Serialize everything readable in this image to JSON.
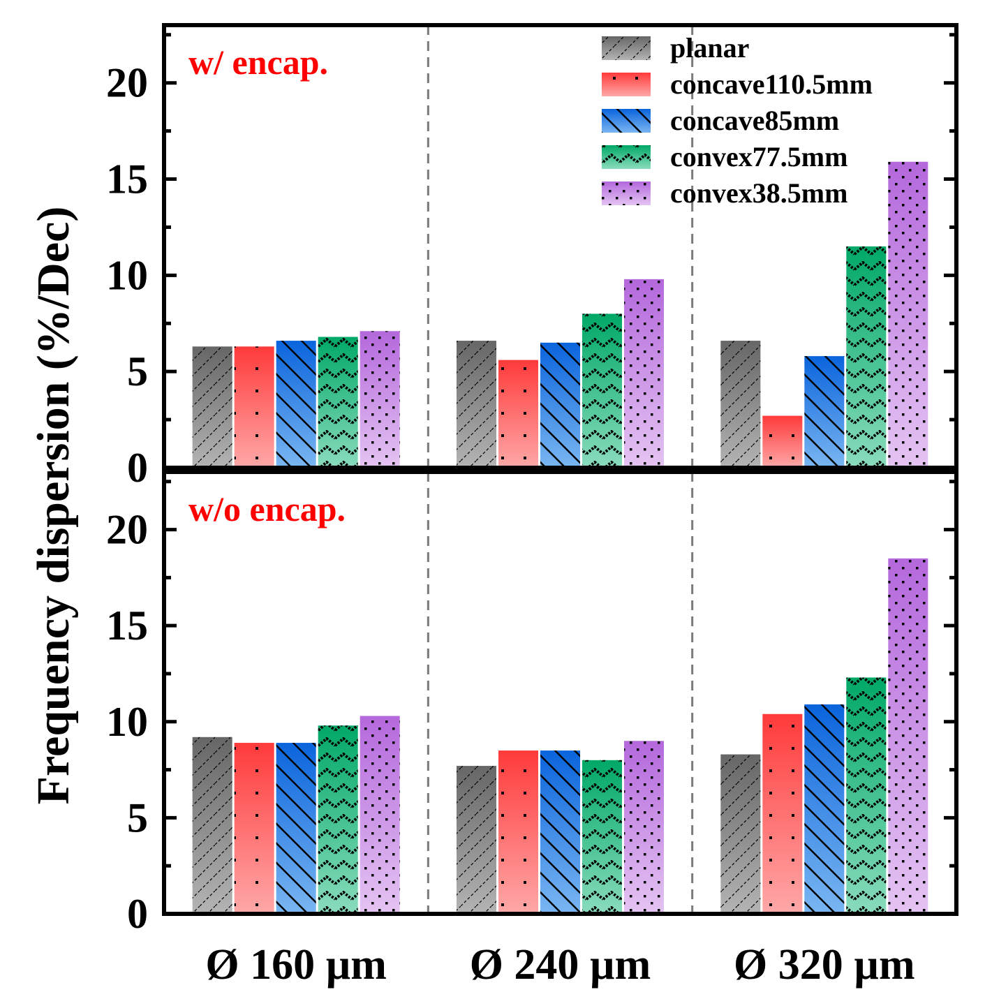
{
  "chart_data": {
    "type": "bar",
    "ylabel": "Frequency dispersion (%/Dec)",
    "ylim": [
      0,
      23
    ],
    "yticks": [
      0,
      5,
      10,
      15,
      20
    ],
    "categories": [
      "Ø 160 µm",
      "Ø 240 µm",
      "Ø 320 µm"
    ],
    "legend": {
      "position": "top-right",
      "entries": [
        "planar",
        "concave110.5mm",
        "concave85mm",
        "convex77.5mm",
        "convex38.5mm"
      ]
    },
    "series_colors": {
      "planar": "#787878",
      "concave110.5mm": "#ff4040",
      "concave85mm": "#1f78e6",
      "convex77.5mm": "#14b473",
      "convex38.5mm": "#b86ee0"
    },
    "panels": [
      {
        "title": "w/ encap.",
        "title_color": "#ff0000",
        "series": [
          {
            "name": "planar",
            "values": [
              6.3,
              6.6,
              6.6
            ]
          },
          {
            "name": "concave110.5mm",
            "values": [
              6.3,
              5.6,
              2.7
            ]
          },
          {
            "name": "concave85mm",
            "values": [
              6.6,
              6.5,
              5.8
            ]
          },
          {
            "name": "convex77.5mm",
            "values": [
              6.8,
              8.0,
              11.5
            ]
          },
          {
            "name": "convex38.5mm",
            "values": [
              7.1,
              9.8,
              15.9
            ]
          }
        ]
      },
      {
        "title": "w/o encap.",
        "title_color": "#ff0000",
        "series": [
          {
            "name": "planar",
            "values": [
              9.2,
              7.7,
              8.3
            ]
          },
          {
            "name": "concave110.5mm",
            "values": [
              8.9,
              8.5,
              10.4
            ]
          },
          {
            "name": "concave85mm",
            "values": [
              8.9,
              8.5,
              10.9
            ]
          },
          {
            "name": "convex77.5mm",
            "values": [
              9.8,
              8.0,
              12.3
            ]
          },
          {
            "name": "convex38.5mm",
            "values": [
              10.3,
              9.0,
              18.5
            ]
          }
        ]
      }
    ]
  }
}
